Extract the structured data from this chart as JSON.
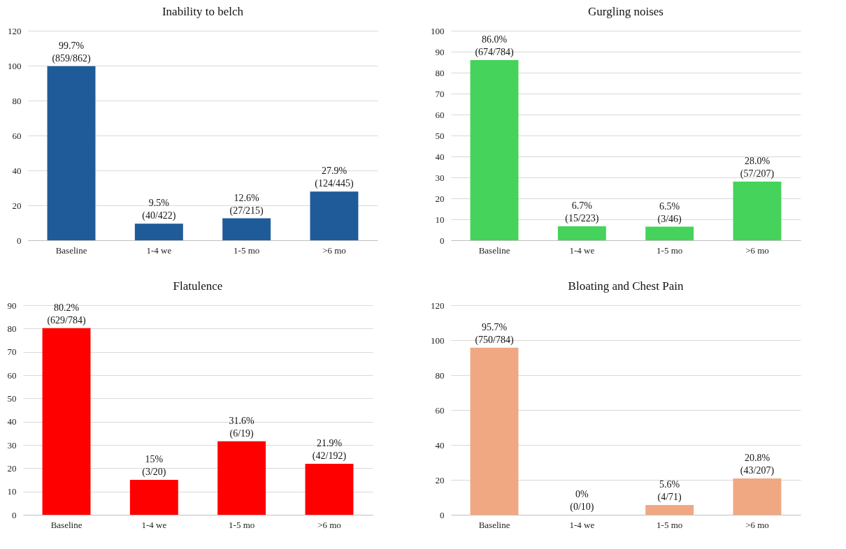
{
  "chart_data": [
    {
      "type": "bar",
      "title": "Inability to belch",
      "categories": [
        "Baseline",
        "1-4 we",
        "1-5 mo",
        ">6 mo"
      ],
      "values": [
        99.7,
        9.5,
        12.6,
        27.9
      ],
      "value_labels": [
        "99.7%\n(859/862)",
        "9.5%\n(40/422)",
        "12.6%\n(27/215)",
        "27.9%\n(124/445)"
      ],
      "color": "#1f5b99",
      "ylim": [
        0,
        120
      ],
      "yticks": [
        0,
        20,
        40,
        60,
        80,
        100,
        120
      ],
      "grid": "y"
    },
    {
      "type": "bar",
      "title": "Gurgling noises",
      "categories": [
        "Baseline",
        "1-4 we",
        "1-5 mo",
        ">6 mo"
      ],
      "values": [
        86.0,
        6.7,
        6.5,
        28.0
      ],
      "value_labels": [
        "86.0%\n(674/784)",
        "6.7%\n(15/223)",
        "6.5%\n(3/46)",
        "28.0%\n(57/207)"
      ],
      "color": "#45d35b",
      "ylim": [
        0,
        100
      ],
      "yticks": [
        0,
        10,
        20,
        30,
        40,
        50,
        60,
        70,
        80,
        90,
        100
      ],
      "grid": "y"
    },
    {
      "type": "bar",
      "title": "Flatulence",
      "categories": [
        "Baseline",
        "1-4 we",
        "1-5 mo",
        ">6 mo"
      ],
      "values": [
        80.2,
        15,
        31.6,
        21.9
      ],
      "value_labels": [
        "80.2%\n(629/784)",
        "15%\n(3/20)",
        "31.6%\n(6/19)",
        "21.9%\n(42/192)"
      ],
      "color": "#ff0000",
      "ylim": [
        0,
        90
      ],
      "yticks": [
        0,
        10,
        20,
        30,
        40,
        50,
        60,
        70,
        80,
        90
      ],
      "grid": "y"
    },
    {
      "type": "bar",
      "title": "Bloating and Chest Pain",
      "categories": [
        "Baseline",
        "1-4 we",
        "1-5 mo",
        ">6 mo"
      ],
      "values": [
        95.7,
        0,
        5.6,
        20.8
      ],
      "value_labels": [
        "95.7%\n(750/784)",
        "0%\n(0/10)",
        "5.6%\n(4/71)",
        "20.8%\n(43/207)"
      ],
      "color": "#f0a883",
      "ylim": [
        0,
        120
      ],
      "yticks": [
        0,
        20,
        40,
        60,
        80,
        100,
        120
      ],
      "grid": "y"
    }
  ]
}
